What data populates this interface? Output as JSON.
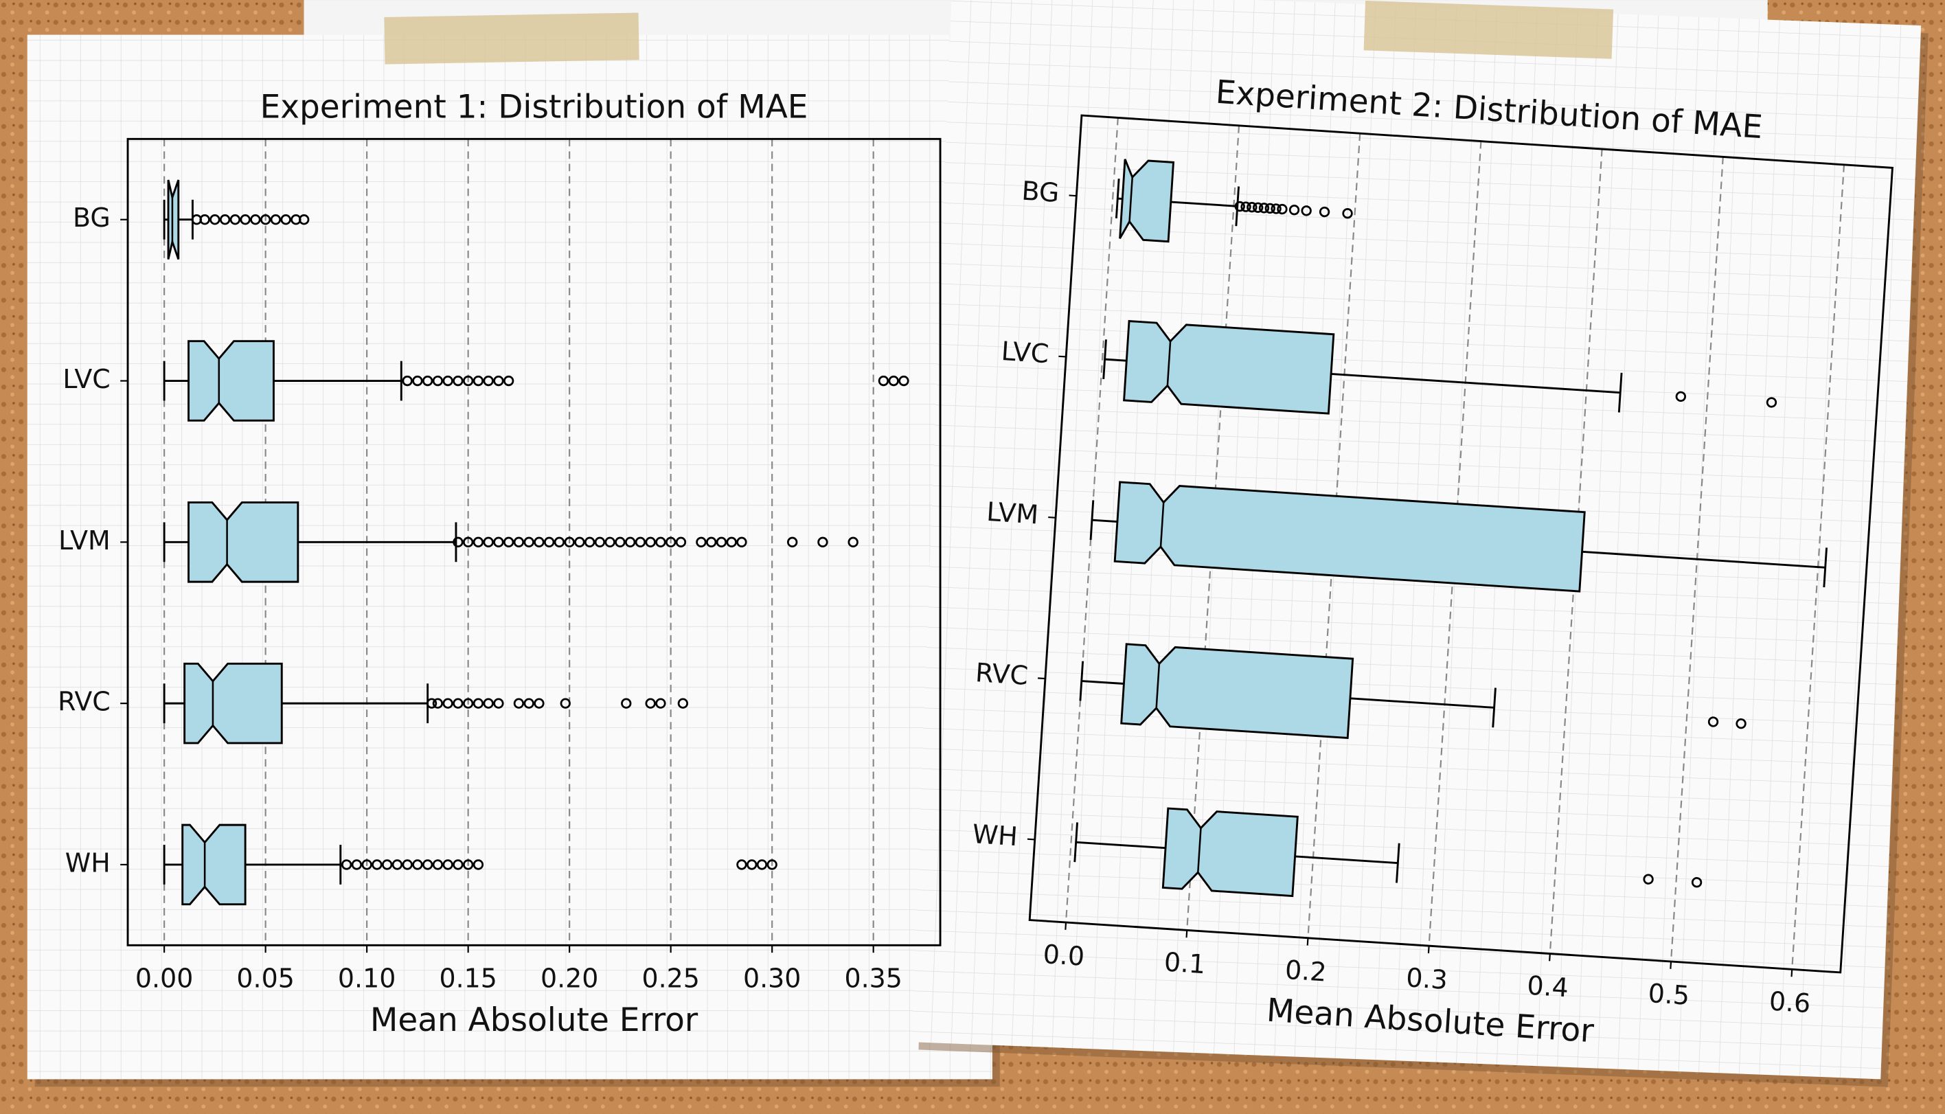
{
  "chart_data": [
    {
      "type": "boxplot",
      "title": "Experiment 1: Distribution of MAE",
      "xlabel": "Mean Absolute Error",
      "categories": [
        "BG",
        "LVC",
        "LVM",
        "RVC",
        "WH"
      ],
      "color": "#add8e6",
      "grid": true,
      "notch": true,
      "xlim": [
        -0.018,
        0.383
      ],
      "xticks": [
        {
          "value": 0,
          "label": "0.00"
        },
        {
          "value": 0.05,
          "label": "0.05"
        },
        {
          "value": 0.1,
          "label": "0.10"
        },
        {
          "value": 0.15,
          "label": "0.15"
        },
        {
          "value": 0.2,
          "label": "0.20"
        },
        {
          "value": 0.25,
          "label": "0.25"
        },
        {
          "value": 0.3,
          "label": "0.30"
        },
        {
          "value": 0.35,
          "label": "0.35"
        }
      ],
      "boxes": [
        {
          "whislo": 0,
          "q1": 0.002,
          "med": 0.004,
          "q3": 0.007,
          "whishi": 0.014,
          "fliers": [
            0.016,
            0.02,
            0.025,
            0.03,
            0.035,
            0.04,
            0.045,
            0.05,
            0.055,
            0.06,
            0.065,
            0.069
          ]
        },
        {
          "whislo": 0,
          "q1": 0.012,
          "med": 0.027,
          "q3": 0.054,
          "whishi": 0.117,
          "fliers": [
            0.12,
            0.125,
            0.13,
            0.135,
            0.14,
            0.145,
            0.15,
            0.155,
            0.16,
            0.165,
            0.17,
            0.355,
            0.36,
            0.365
          ]
        },
        {
          "whislo": 0,
          "q1": 0.012,
          "med": 0.031,
          "q3": 0.066,
          "whishi": 0.144,
          "fliers": [
            0.145,
            0.15,
            0.155,
            0.16,
            0.165,
            0.17,
            0.175,
            0.18,
            0.185,
            0.19,
            0.195,
            0.2,
            0.205,
            0.21,
            0.215,
            0.22,
            0.225,
            0.23,
            0.235,
            0.24,
            0.245,
            0.25,
            0.255,
            0.265,
            0.27,
            0.275,
            0.28,
            0.285,
            0.31,
            0.325,
            0.34
          ]
        },
        {
          "whislo": 0,
          "q1": 0.01,
          "med": 0.024,
          "q3": 0.058,
          "whishi": 0.13,
          "fliers": [
            0.132,
            0.135,
            0.14,
            0.145,
            0.15,
            0.155,
            0.16,
            0.165,
            0.175,
            0.18,
            0.185,
            0.198,
            0.228,
            0.24,
            0.245,
            0.256
          ]
        },
        {
          "whislo": 0,
          "q1": 0.009,
          "med": 0.02,
          "q3": 0.04,
          "whishi": 0.087,
          "fliers": [
            0.09,
            0.095,
            0.1,
            0.105,
            0.11,
            0.115,
            0.12,
            0.125,
            0.13,
            0.135,
            0.14,
            0.145,
            0.15,
            0.155,
            0.285,
            0.29,
            0.295,
            0.3
          ]
        }
      ]
    },
    {
      "type": "boxplot",
      "title": "Experiment 2: Distribution of MAE",
      "xlabel": "Mean Absolute Error",
      "categories": [
        "BG",
        "LVC",
        "LVM",
        "RVC",
        "WH"
      ],
      "color": "#add8e6",
      "grid": true,
      "notch": true,
      "xlim": [
        -0.03,
        0.64
      ],
      "xticks": [
        {
          "value": 0,
          "label": "0.0"
        },
        0.1,
        0.2,
        0.3,
        0.4,
        0.5,
        0.6
      ],
      "boxes": [
        {
          "whislo": 0.004,
          "q1": 0.008,
          "med": 0.015,
          "q3": 0.048,
          "whishi": 0.103,
          "fliers": [
            0.105,
            0.11,
            0.115,
            0.12,
            0.125,
            0.13,
            0.135,
            0.14,
            0.15,
            0.16,
            0.175,
            0.194
          ]
        },
        {
          "whislo": 0.002,
          "q1": 0.02,
          "med": 0.055,
          "q3": 0.189,
          "whishi": 0.428,
          "fliers": [
            0.478,
            0.553
          ]
        },
        {
          "whislo": 0,
          "q1": 0.021,
          "med": 0.058,
          "q3": 0.405,
          "whishi": 0.606,
          "fliers": []
        },
        {
          "whislo": 0,
          "q1": 0.035,
          "med": 0.063,
          "q3": 0.222,
          "whishi": 0.341,
          "fliers": [
            0.522,
            0.545
          ]
        },
        {
          "whislo": 0.004,
          "q1": 0.078,
          "med": 0.106,
          "q3": 0.185,
          "whishi": 0.27,
          "fliers": [
            0.477,
            0.517
          ]
        }
      ]
    }
  ]
}
